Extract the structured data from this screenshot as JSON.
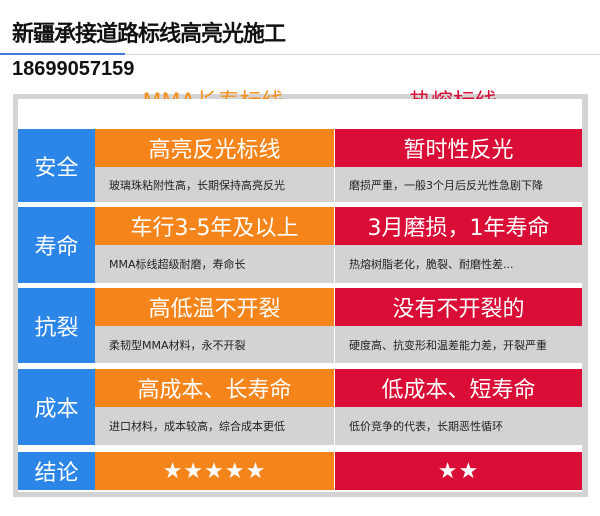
{
  "header": {
    "title": "新疆承接道路标线高亮光施工",
    "phone": "18699057159"
  },
  "columns": [
    {
      "label": "MMA长寿标线",
      "color": "#f5841b"
    },
    {
      "label": "热熔标线",
      "color": "#d90d35"
    }
  ],
  "label_color": "#2b86e8",
  "rows": [
    {
      "label": "安全",
      "mma": {
        "title": "高亮反光标线",
        "desc": "玻璃珠粘附性高，长期保持高亮反光"
      },
      "hot": {
        "title": "暂时性反光",
        "desc": "磨损严重，一般3个月后反光性急剧下降"
      }
    },
    {
      "label": "寿命",
      "mma": {
        "title": "车行3-5年及以上",
        "desc": "MMA标线超级耐磨，寿命长"
      },
      "hot": {
        "title": "3月磨损，1年寿命",
        "desc": "热熔树脂老化，脆裂、耐磨性差..."
      }
    },
    {
      "label": "抗裂",
      "mma": {
        "title": "高低温不开裂",
        "desc": "柔韧型MMA材料，永不开裂"
      },
      "hot": {
        "title": "没有不开裂的",
        "desc": "硬度高、抗变形和温差能力差，开裂严重"
      }
    },
    {
      "label": "成本",
      "mma": {
        "title": "高成本、长寿命",
        "desc": "进口材料，成本较高，综合成本更低"
      },
      "hot": {
        "title": "低成本、短寿命",
        "desc": "低价竞争的代表，长期恶性循环"
      }
    }
  ],
  "conclusion": {
    "label": "结论",
    "mma": "★★★★★",
    "hot": "★★",
    "mma_stars": 5,
    "hot_stars": 2
  }
}
